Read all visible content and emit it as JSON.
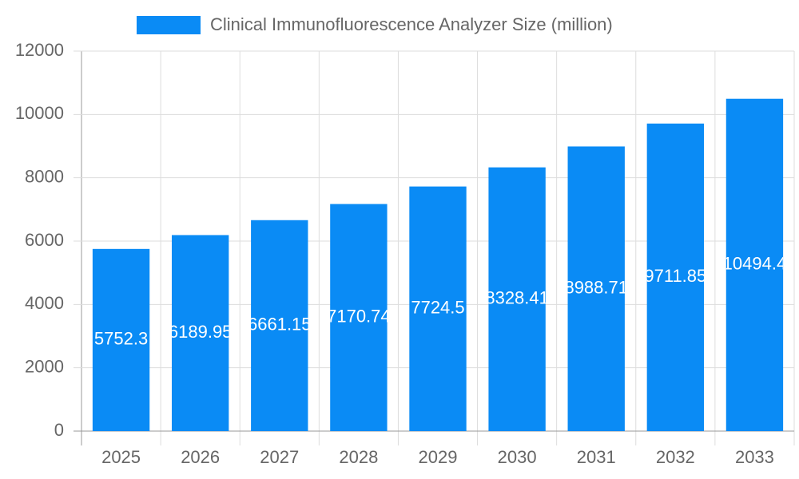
{
  "chart_data": {
    "type": "bar",
    "legend": "Clinical Immunofluorescence Analyzer Size (million)",
    "categories": [
      "2025",
      "2026",
      "2027",
      "2028",
      "2029",
      "2030",
      "2031",
      "2032",
      "2033"
    ],
    "values": [
      5752.3,
      6189.95,
      6661.15,
      7170.74,
      7724.5,
      8328.41,
      8988.71,
      9711.85,
      10494.4
    ],
    "color": "#0a8bf5",
    "ylim": [
      0,
      12000
    ],
    "yticks": [
      0,
      2000,
      4000,
      6000,
      8000,
      10000,
      12000
    ],
    "grid": true
  }
}
